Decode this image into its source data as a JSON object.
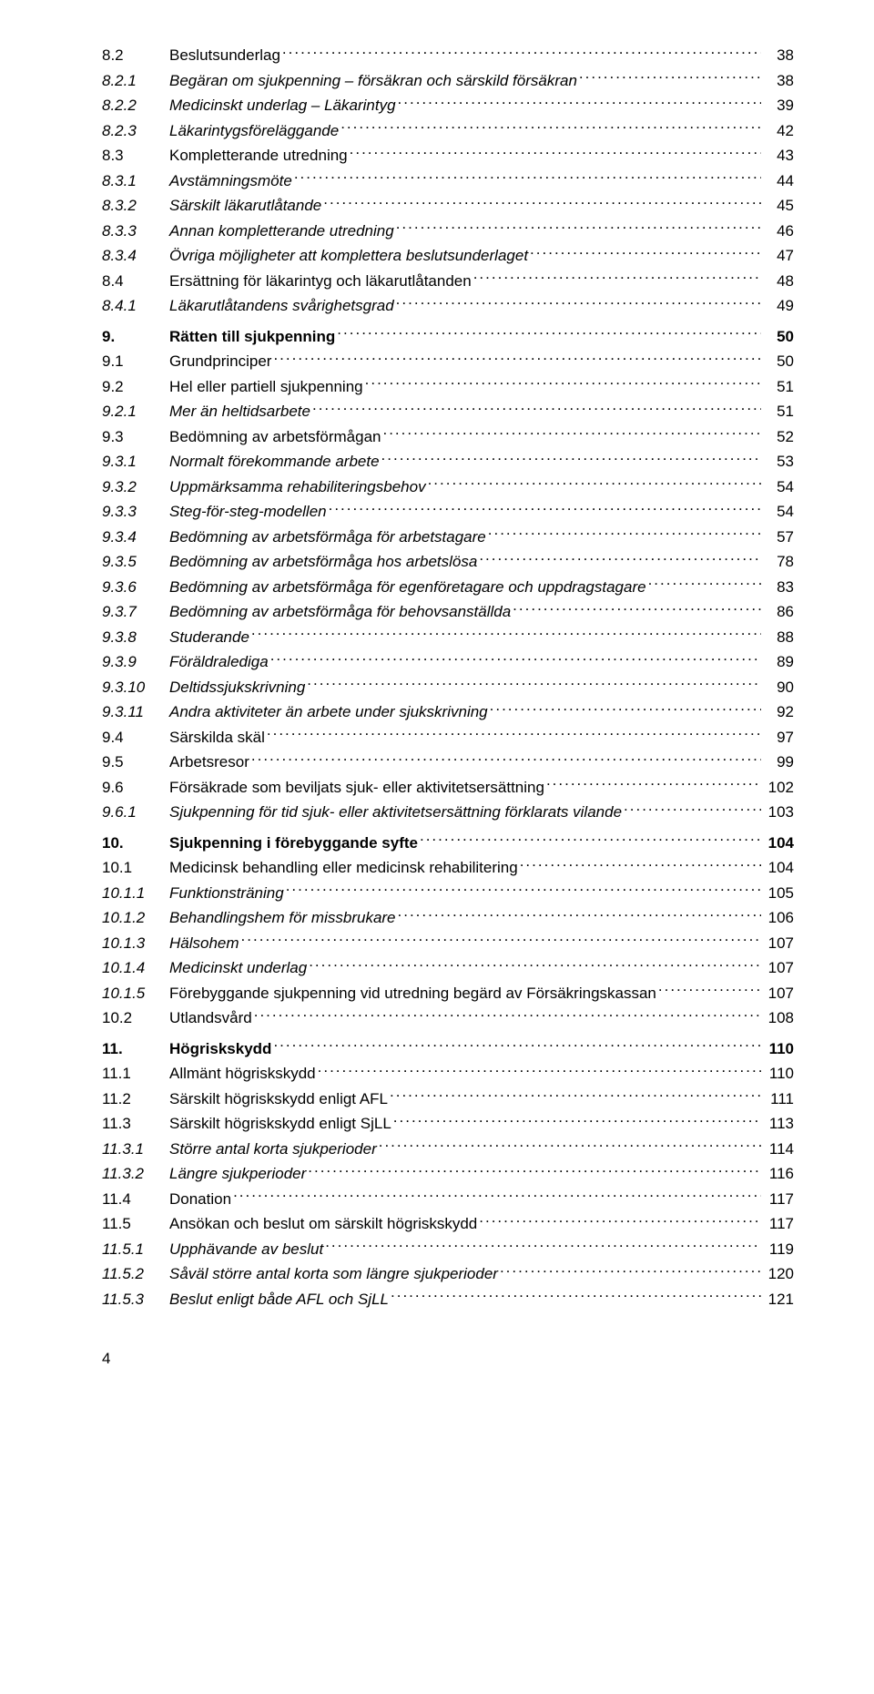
{
  "footer_page": "4",
  "toc": [
    {
      "num": "8.2",
      "title": "Beslutsunderlag",
      "page": "38",
      "style": "plain"
    },
    {
      "num": "8.2.1",
      "title": "Begäran om sjukpenning – försäkran och särskild försäkran",
      "page": "38",
      "style": "italic"
    },
    {
      "num": "8.2.2",
      "title": "Medicinskt underlag – Läkarintyg",
      "page": "39",
      "style": "italic"
    },
    {
      "num": "8.2.3",
      "title": "Läkarintygsföreläggande",
      "page": "42",
      "style": "italic"
    },
    {
      "num": "8.3",
      "title": "Kompletterande utredning",
      "page": "43",
      "style": "plain"
    },
    {
      "num": "8.3.1",
      "title": "Avstämningsmöte",
      "page": "44",
      "style": "italic"
    },
    {
      "num": "8.3.2",
      "title": "Särskilt läkarutlåtande",
      "page": "45",
      "style": "italic"
    },
    {
      "num": "8.3.3",
      "title": "Annan kompletterande utredning",
      "page": "46",
      "style": "italic"
    },
    {
      "num": "8.3.4",
      "title": "Övriga möjligheter att komplettera beslutsunderlaget",
      "page": "47",
      "style": "italic"
    },
    {
      "num": "8.4",
      "title": "Ersättning för läkarintyg och läkarutlåtanden",
      "page": "48",
      "style": "plain"
    },
    {
      "num": "8.4.1",
      "title": "Läkarutlåtandens svårighetsgrad",
      "page": "49",
      "style": "italic"
    },
    {
      "num": "9.",
      "title": "Rätten till sjukpenning",
      "page": "50",
      "style": "bold"
    },
    {
      "num": "9.1",
      "title": "Grundprinciper",
      "page": "50",
      "style": "plain"
    },
    {
      "num": "9.2",
      "title": "Hel eller partiell sjukpenning",
      "page": "51",
      "style": "plain"
    },
    {
      "num": "9.2.1",
      "title": "Mer än heltidsarbete",
      "page": "51",
      "style": "italic"
    },
    {
      "num": "9.3",
      "title": "Bedömning av arbetsförmågan",
      "page": "52",
      "style": "plain"
    },
    {
      "num": "9.3.1",
      "title": "Normalt förekommande arbete",
      "page": "53",
      "style": "italic"
    },
    {
      "num": "9.3.2",
      "title": "Uppmärksamma rehabiliteringsbehov",
      "page": "54",
      "style": "italic"
    },
    {
      "num": "9.3.3",
      "title": "Steg-för-steg-modellen",
      "page": "54",
      "style": "italic"
    },
    {
      "num": "9.3.4",
      "title": "Bedömning av arbetsförmåga för arbetstagare",
      "page": "57",
      "style": "italic"
    },
    {
      "num": "9.3.5",
      "title": "Bedömning av arbetsförmåga hos arbetslösa",
      "page": "78",
      "style": "italic"
    },
    {
      "num": "9.3.6",
      "title": "Bedömning av arbetsförmåga för egenföretagare och uppdragstagare",
      "page": "83",
      "style": "italic"
    },
    {
      "num": "9.3.7",
      "title": "Bedömning av arbetsförmåga för behovsanställda",
      "page": "86",
      "style": "italic"
    },
    {
      "num": "9.3.8",
      "title": "Studerande",
      "page": "88",
      "style": "italic"
    },
    {
      "num": "9.3.9",
      "title": "Föräldralediga",
      "page": "89",
      "style": "italic"
    },
    {
      "num": "9.3.10",
      "title": "Deltidssjukskrivning",
      "page": "90",
      "style": "italic"
    },
    {
      "num": "9.3.11",
      "title": "Andra aktiviteter än arbete under sjukskrivning",
      "page": "92",
      "style": "italic"
    },
    {
      "num": "9.4",
      "title": "Särskilda skäl",
      "page": "97",
      "style": "plain"
    },
    {
      "num": "9.5",
      "title": "Arbetsresor",
      "page": "99",
      "style": "plain"
    },
    {
      "num": "9.6",
      "title": "Försäkrade som beviljats sjuk- eller aktivitetsersättning",
      "page": "102",
      "style": "plain"
    },
    {
      "num": "9.6.1",
      "title": "Sjukpenning för tid sjuk- eller aktivitetsersättning förklarats vilande",
      "page": "103",
      "style": "italic"
    },
    {
      "num": "10.",
      "title": "Sjukpenning i förebyggande syfte",
      "page": "104",
      "style": "bold"
    },
    {
      "num": "10.1",
      "title": "Medicinsk behandling eller medicinsk rehabilitering",
      "page": "104",
      "style": "plain"
    },
    {
      "num": "10.1.1",
      "title": "Funktionsträning",
      "page": "105",
      "style": "italic"
    },
    {
      "num": "10.1.2",
      "title": "Behandlingshem för missbrukare",
      "page": "106",
      "style": "italic"
    },
    {
      "num": "10.1.3",
      "title": "Hälsohem",
      "page": "107",
      "style": "italic"
    },
    {
      "num": "10.1.4",
      "title": "Medicinskt underlag",
      "page": "107",
      "style": "italic"
    },
    {
      "num": "10.1.5",
      "title": "Förebyggande sjukpenning vid utredning begärd av Försäkringskassan",
      "page": "107",
      "style": "italic",
      "wrap": true
    },
    {
      "num": "10.2",
      "title": "Utlandsvård",
      "page": "108",
      "style": "plain"
    },
    {
      "num": "11.",
      "title": "Högriskskydd",
      "page": "110",
      "style": "bold"
    },
    {
      "num": "11.1",
      "title": "Allmänt högriskskydd",
      "page": "110",
      "style": "plain"
    },
    {
      "num": "11.2",
      "title": "Särskilt högriskskydd enligt AFL",
      "page": "111",
      "style": "plain"
    },
    {
      "num": "11.3",
      "title": "Särskilt högriskskydd enligt SjLL",
      "page": "113",
      "style": "plain"
    },
    {
      "num": "11.3.1",
      "title": "Större antal korta sjukperioder",
      "page": "114",
      "style": "italic"
    },
    {
      "num": "11.3.2",
      "title": "Längre sjukperioder",
      "page": "116",
      "style": "italic"
    },
    {
      "num": "11.4",
      "title": "Donation",
      "page": "117",
      "style": "plain"
    },
    {
      "num": "11.5",
      "title": "Ansökan och beslut om särskilt högriskskydd",
      "page": "117",
      "style": "plain"
    },
    {
      "num": "11.5.1",
      "title": "Upphävande av beslut",
      "page": "119",
      "style": "italic"
    },
    {
      "num": "11.5.2",
      "title": "Såväl större antal korta som längre sjukperioder",
      "page": "120",
      "style": "italic"
    },
    {
      "num": "11.5.3",
      "title": "Beslut enligt både AFL och SjLL",
      "page": "121",
      "style": "italic"
    }
  ]
}
